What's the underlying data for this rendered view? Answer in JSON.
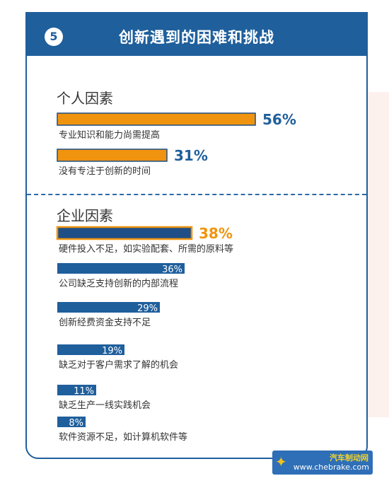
{
  "header": {
    "number": "5",
    "title": "创新遇到的困难和挑战"
  },
  "sections": [
    {
      "title": "个人因素"
    },
    {
      "title": "企业因素"
    }
  ],
  "colors": {
    "orange": "#f0940f",
    "blue": "#1f5f9c",
    "navy": "#1f4f86",
    "text": "#333333"
  },
  "chart_data": {
    "type": "bar",
    "orientation": "horizontal",
    "groups": [
      {
        "name": "个人因素",
        "items": [
          {
            "label": "专业知识和能力尚需提高",
            "value": 56,
            "value_label": "56%",
            "style": "orange"
          },
          {
            "label": "没有专注于创新的时间",
            "value": 31,
            "value_label": "31%",
            "style": "orange"
          }
        ]
      },
      {
        "name": "企业因素",
        "items": [
          {
            "label": "硬件投入不足，如实验配套、所需的原料等",
            "value": 38,
            "value_label": "38%",
            "style": "navy-outlined"
          },
          {
            "label": "公司缺乏支持创新的内部流程",
            "value": 36,
            "value_label": "36%",
            "style": "blue"
          },
          {
            "label": "创新经费资金支持不足",
            "value": 29,
            "value_label": "29%",
            "style": "blue"
          },
          {
            "label": "缺乏对于客户需求了解的机会",
            "value": 19,
            "value_label": "19%",
            "style": "blue"
          },
          {
            "label": "缺乏生产一线实践机会",
            "value": 11,
            "value_label": "11%",
            "style": "blue"
          },
          {
            "label": "软件资源不足，如计算机软件等",
            "value": 8,
            "value_label": "8%",
            "style": "blue"
          }
        ]
      }
    ],
    "xlim": [
      0,
      100
    ]
  },
  "watermark": {
    "title": "汽车制动网",
    "url": "www.chebrake.com",
    "logo_icon": "brake-disc-icon"
  }
}
